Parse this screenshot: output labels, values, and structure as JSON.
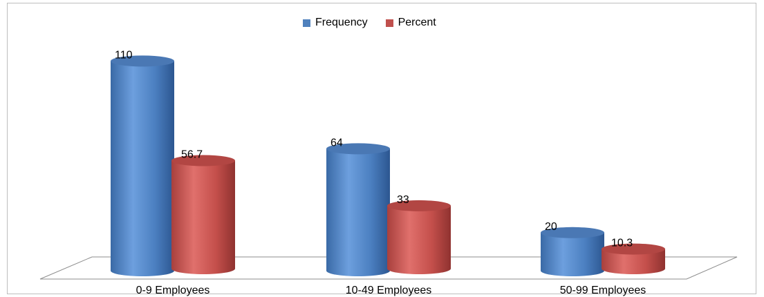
{
  "chart_data": {
    "type": "bar",
    "style": "3d-cylinder",
    "categories": [
      "0-9 Employees",
      "10-49 Employees",
      "50-99 Employees"
    ],
    "series": [
      {
        "name": "Frequency",
        "values": [
          110,
          64,
          20
        ],
        "labels": [
          "110",
          "64",
          "20"
        ],
        "color": "#4f81bd"
      },
      {
        "name": "Percent",
        "values": [
          56.7,
          33,
          10.3
        ],
        "labels": [
          "56.7",
          "33",
          "10.3"
        ],
        "color": "#c0504d"
      }
    ],
    "legend_position": "top",
    "grid": false
  }
}
